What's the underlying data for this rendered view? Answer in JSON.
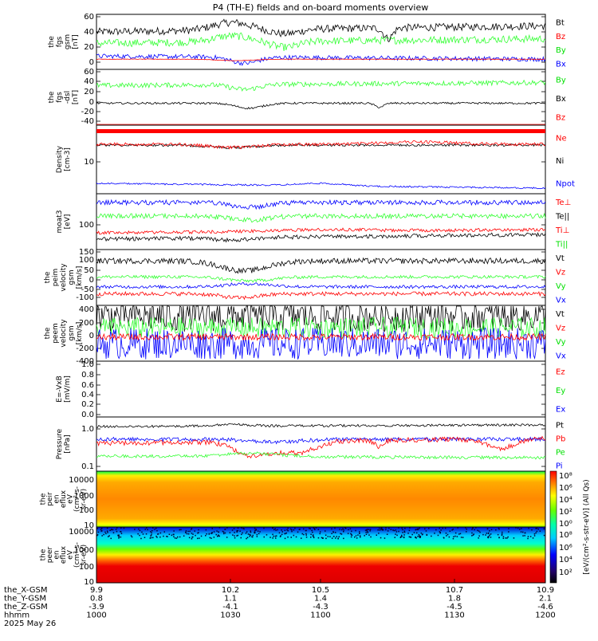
{
  "title": "P4 (TH-E) fields and on-board moments overview",
  "colors": {
    "black": "#000000",
    "red": "#ff0000",
    "green": "#00e000",
    "blue": "#0000ff",
    "ltgreen": "#33ff33"
  },
  "chart_data": {
    "type": "line",
    "x_axis": {
      "rows": [
        {
          "label": "the_X-GSM",
          "values": [
            "9.9",
            "10.2",
            "10.5",
            "10.7",
            "10.9"
          ]
        },
        {
          "label": "the_Y-GSM",
          "values": [
            "0.8",
            "1.1",
            "1.4",
            "1.8",
            "2.1"
          ]
        },
        {
          "label": "the_Z-GSM",
          "values": [
            "-3.9",
            "-4.1",
            "-4.3",
            "-4.5",
            "-4.6"
          ]
        },
        {
          "label": "hhmm",
          "values": [
            "1000",
            "1030",
            "1100",
            "1130",
            "1200"
          ]
        }
      ],
      "date": "2025 May 26"
    },
    "panels": [
      {
        "id": "p1",
        "ylabel": [
          "the",
          "fgs",
          "gsm",
          "[nT]"
        ],
        "yticks": [
          "60",
          "40",
          "20",
          "0"
        ],
        "legend": [
          {
            "name": "Bt",
            "color": "#000000"
          },
          {
            "name": "Bz",
            "color": "#ff0000"
          },
          {
            "name": "By",
            "color": "#00e000"
          },
          {
            "name": "Bx",
            "color": "#0000ff"
          }
        ]
      },
      {
        "id": "p2",
        "ylabel": [
          "the",
          "fgs",
          "-dsl",
          "[nT]"
        ],
        "yticks": [
          "60",
          "40",
          "20",
          "0",
          "-20",
          "-40"
        ],
        "legend": [
          {
            "name": "By",
            "color": "#00e000"
          },
          {
            "name": "Bx",
            "color": "#000000"
          },
          {
            "name": "Bz",
            "color": "#ff0000"
          }
        ]
      },
      {
        "id": "p3",
        "ylabel": [
          "Density",
          "[cm-3]"
        ],
        "yticks": [
          "10"
        ],
        "legend": [
          {
            "name": "Ne",
            "color": "#ff0000"
          },
          {
            "name": "Ni",
            "color": "#000000"
          },
          {
            "name": "Npot",
            "color": "#0000ff"
          }
        ]
      },
      {
        "id": "p4",
        "ylabel": [
          "moat3",
          "[eV]"
        ],
        "yticks": [
          "100"
        ],
        "legend": [
          {
            "name": "Te⊥",
            "color": "#ff0000"
          },
          {
            "name": "Te||",
            "color": "#000000"
          },
          {
            "name": "Ti⊥",
            "color": "#ff0000"
          },
          {
            "name": "Ti||",
            "color": "#00e000"
          }
        ]
      },
      {
        "id": "p5",
        "ylabel": [
          "the",
          "peim",
          "velocity",
          "gsm",
          "[km/s]"
        ],
        "yticks": [
          "150",
          "100",
          "50",
          "0",
          "-50",
          "-100"
        ],
        "legend": [
          {
            "name": "Vt",
            "color": "#000000"
          },
          {
            "name": "Vz",
            "color": "#ff0000"
          },
          {
            "name": "Vy",
            "color": "#00e000"
          },
          {
            "name": "Vx",
            "color": "#0000ff"
          }
        ]
      },
      {
        "id": "p6",
        "ylabel": [
          "the",
          "peem",
          "velocity",
          "gsm",
          "[km/s]"
        ],
        "yticks": [
          "400",
          "200",
          "0",
          "-200",
          "-400"
        ],
        "legend": [
          {
            "name": "Vt",
            "color": "#000000"
          },
          {
            "name": "Vz",
            "color": "#ff0000"
          },
          {
            "name": "Vy",
            "color": "#00e000"
          },
          {
            "name": "Vx",
            "color": "#0000ff"
          }
        ]
      },
      {
        "id": "p7",
        "ylabel": [
          "E=-VxB",
          "[mV/m]"
        ],
        "yticks": [
          "1.0",
          "0.8",
          "0.6",
          "0.4",
          "0.2",
          "0.0"
        ],
        "legend": [
          {
            "name": "Ez",
            "color": "#ff0000"
          },
          {
            "name": "Ey",
            "color": "#00e000"
          },
          {
            "name": "Ex",
            "color": "#0000ff"
          }
        ]
      },
      {
        "id": "p8",
        "ylabel": [
          "Pressure",
          "[nPa]"
        ],
        "yticks": [
          "1.0",
          "0.1"
        ],
        "legend": [
          {
            "name": "Pt",
            "color": "#000000"
          },
          {
            "name": "Pb",
            "color": "#ff0000"
          },
          {
            "name": "Pe",
            "color": "#00e000"
          },
          {
            "name": "Pi",
            "color": "#0000ff"
          }
        ]
      },
      {
        "id": "p9",
        "ylabel": [
          "the",
          "peir",
          "en",
          "eflux",
          "eV",
          "(cm²-s-",
          "sr-eV)"
        ],
        "yticks": [
          "10000",
          "1000",
          "100",
          "10"
        ]
      },
      {
        "id": "p10",
        "ylabel": [
          "the",
          "peer",
          "en",
          "eflux",
          "eV",
          "(cm²-s-",
          "sr-eV)"
        ],
        "yticks": [
          "10000",
          "1000",
          "100",
          "10"
        ]
      }
    ],
    "colorbar": {
      "ticks": [
        "10⁸",
        "10⁶",
        "10⁴",
        "10²",
        "10⁰",
        "10⁸",
        "10⁶",
        "10⁴",
        "10²"
      ],
      "label": "[eV/(cm²-s-str-eV)] (All Qs)"
    }
  }
}
